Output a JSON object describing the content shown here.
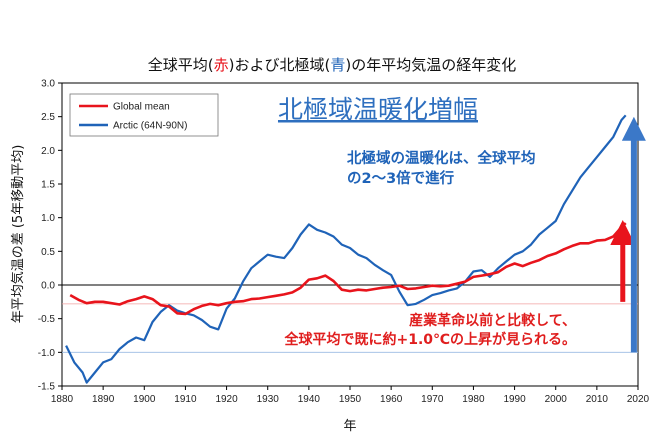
{
  "title_parts": {
    "p1": "全球平均(",
    "p2": "赤",
    "p3": ")および北極域(",
    "p4": "青",
    "p5": ")の年平均気温の経年変化"
  },
  "colors": {
    "global": "#e8141c",
    "arctic": "#1f63b8",
    "red_text": "#e01e1e",
    "blue_text": "#1f63b8"
  },
  "annotations": {
    "headline": "北極域温暖化増幅",
    "blue_line1": "北極域の温暖化は、全球平均",
    "blue_line2": "の2～3倍で進行",
    "red_line1": "産業革命以前と比較して、",
    "red_line2": "全球平均で既に約+1.0℃の上昇が見られる。"
  },
  "chart_data": {
    "type": "line",
    "title": "全球平均(赤)および北極域(青)の年平均気温の経年変化",
    "xlabel": "年",
    "ylabel": "年平均気温の差 (5年移動平均)",
    "xlim": [
      1880,
      2020
    ],
    "ylim": [
      -1.5,
      3.0
    ],
    "x_ticks": [
      "1880",
      "1890",
      "1900",
      "1910",
      "1920",
      "1930",
      "1940",
      "1950",
      "1960",
      "1970",
      "1980",
      "1990",
      "2000",
      "2010",
      "2020"
    ],
    "y_ticks": [
      "3.0",
      "2.5",
      "2.0",
      "1.5",
      "1.0",
      "0.5",
      "0.0",
      "-0.5",
      "-1.0",
      "-1.5"
    ],
    "legend": [
      "Global mean",
      "Arctic (64N-90N)"
    ],
    "legend_position": "top-left",
    "grid": false,
    "series": [
      {
        "name": "Global mean",
        "color": "#e8141c",
        "points": [
          [
            1882,
            -0.15
          ],
          [
            1884,
            -0.22
          ],
          [
            1886,
            -0.27
          ],
          [
            1888,
            -0.25
          ],
          [
            1890,
            -0.25
          ],
          [
            1892,
            -0.27
          ],
          [
            1894,
            -0.29
          ],
          [
            1896,
            -0.24
          ],
          [
            1898,
            -0.21
          ],
          [
            1900,
            -0.17
          ],
          [
            1902,
            -0.21
          ],
          [
            1904,
            -0.3
          ],
          [
            1906,
            -0.32
          ],
          [
            1908,
            -0.42
          ],
          [
            1910,
            -0.43
          ],
          [
            1912,
            -0.36
          ],
          [
            1914,
            -0.31
          ],
          [
            1916,
            -0.28
          ],
          [
            1918,
            -0.3
          ],
          [
            1920,
            -0.27
          ],
          [
            1922,
            -0.25
          ],
          [
            1924,
            -0.24
          ],
          [
            1926,
            -0.21
          ],
          [
            1928,
            -0.2
          ],
          [
            1930,
            -0.18
          ],
          [
            1932,
            -0.16
          ],
          [
            1934,
            -0.14
          ],
          [
            1936,
            -0.11
          ],
          [
            1938,
            -0.04
          ],
          [
            1940,
            0.08
          ],
          [
            1942,
            0.1
          ],
          [
            1944,
            0.14
          ],
          [
            1946,
            0.06
          ],
          [
            1948,
            -0.07
          ],
          [
            1950,
            -0.09
          ],
          [
            1952,
            -0.07
          ],
          [
            1954,
            -0.08
          ],
          [
            1956,
            -0.06
          ],
          [
            1958,
            -0.04
          ],
          [
            1960,
            -0.03
          ],
          [
            1962,
            -0.01
          ],
          [
            1964,
            -0.06
          ],
          [
            1966,
            -0.05
          ],
          [
            1968,
            -0.03
          ],
          [
            1970,
            -0.01
          ],
          [
            1972,
            -0.02
          ],
          [
            1974,
            -0.01
          ],
          [
            1976,
            0.02
          ],
          [
            1978,
            0.05
          ],
          [
            1980,
            0.12
          ],
          [
            1982,
            0.14
          ],
          [
            1984,
            0.16
          ],
          [
            1986,
            0.19
          ],
          [
            1988,
            0.27
          ],
          [
            1990,
            0.32
          ],
          [
            1992,
            0.28
          ],
          [
            1994,
            0.33
          ],
          [
            1996,
            0.37
          ],
          [
            1998,
            0.43
          ],
          [
            2000,
            0.47
          ],
          [
            2002,
            0.53
          ],
          [
            2004,
            0.58
          ],
          [
            2006,
            0.62
          ],
          [
            2008,
            0.62
          ],
          [
            2010,
            0.66
          ],
          [
            2012,
            0.67
          ],
          [
            2014,
            0.72
          ],
          [
            2016,
            0.86
          ],
          [
            2017,
            0.92
          ]
        ]
      },
      {
        "name": "Arctic (64N-90N)",
        "color": "#1f63b8",
        "points": [
          [
            1881,
            -0.9
          ],
          [
            1883,
            -1.15
          ],
          [
            1885,
            -1.3
          ],
          [
            1886,
            -1.45
          ],
          [
            1888,
            -1.3
          ],
          [
            1890,
            -1.15
          ],
          [
            1892,
            -1.1
          ],
          [
            1894,
            -0.95
          ],
          [
            1896,
            -0.85
          ],
          [
            1898,
            -0.78
          ],
          [
            1900,
            -0.82
          ],
          [
            1902,
            -0.55
          ],
          [
            1904,
            -0.4
          ],
          [
            1906,
            -0.3
          ],
          [
            1908,
            -0.38
          ],
          [
            1910,
            -0.42
          ],
          [
            1912,
            -0.45
          ],
          [
            1914,
            -0.52
          ],
          [
            1916,
            -0.62
          ],
          [
            1918,
            -0.66
          ],
          [
            1920,
            -0.35
          ],
          [
            1922,
            -0.2
          ],
          [
            1924,
            0.05
          ],
          [
            1926,
            0.25
          ],
          [
            1928,
            0.35
          ],
          [
            1930,
            0.45
          ],
          [
            1932,
            0.42
          ],
          [
            1934,
            0.4
          ],
          [
            1936,
            0.55
          ],
          [
            1938,
            0.75
          ],
          [
            1940,
            0.9
          ],
          [
            1942,
            0.82
          ],
          [
            1944,
            0.78
          ],
          [
            1946,
            0.72
          ],
          [
            1948,
            0.6
          ],
          [
            1950,
            0.55
          ],
          [
            1952,
            0.45
          ],
          [
            1954,
            0.4
          ],
          [
            1956,
            0.3
          ],
          [
            1958,
            0.22
          ],
          [
            1960,
            0.15
          ],
          [
            1962,
            -0.1
          ],
          [
            1964,
            -0.3
          ],
          [
            1966,
            -0.28
          ],
          [
            1968,
            -0.22
          ],
          [
            1970,
            -0.15
          ],
          [
            1972,
            -0.12
          ],
          [
            1974,
            -0.08
          ],
          [
            1976,
            -0.05
          ],
          [
            1978,
            0.05
          ],
          [
            1980,
            0.2
          ],
          [
            1982,
            0.22
          ],
          [
            1984,
            0.12
          ],
          [
            1986,
            0.25
          ],
          [
            1988,
            0.35
          ],
          [
            1990,
            0.45
          ],
          [
            1992,
            0.5
          ],
          [
            1994,
            0.6
          ],
          [
            1996,
            0.75
          ],
          [
            1998,
            0.85
          ],
          [
            2000,
            0.95
          ],
          [
            2002,
            1.2
          ],
          [
            2004,
            1.4
          ],
          [
            2006,
            1.6
          ],
          [
            2008,
            1.75
          ],
          [
            2010,
            1.9
          ],
          [
            2012,
            2.05
          ],
          [
            2014,
            2.2
          ],
          [
            2016,
            2.45
          ],
          [
            2017,
            2.52
          ]
        ]
      }
    ]
  }
}
